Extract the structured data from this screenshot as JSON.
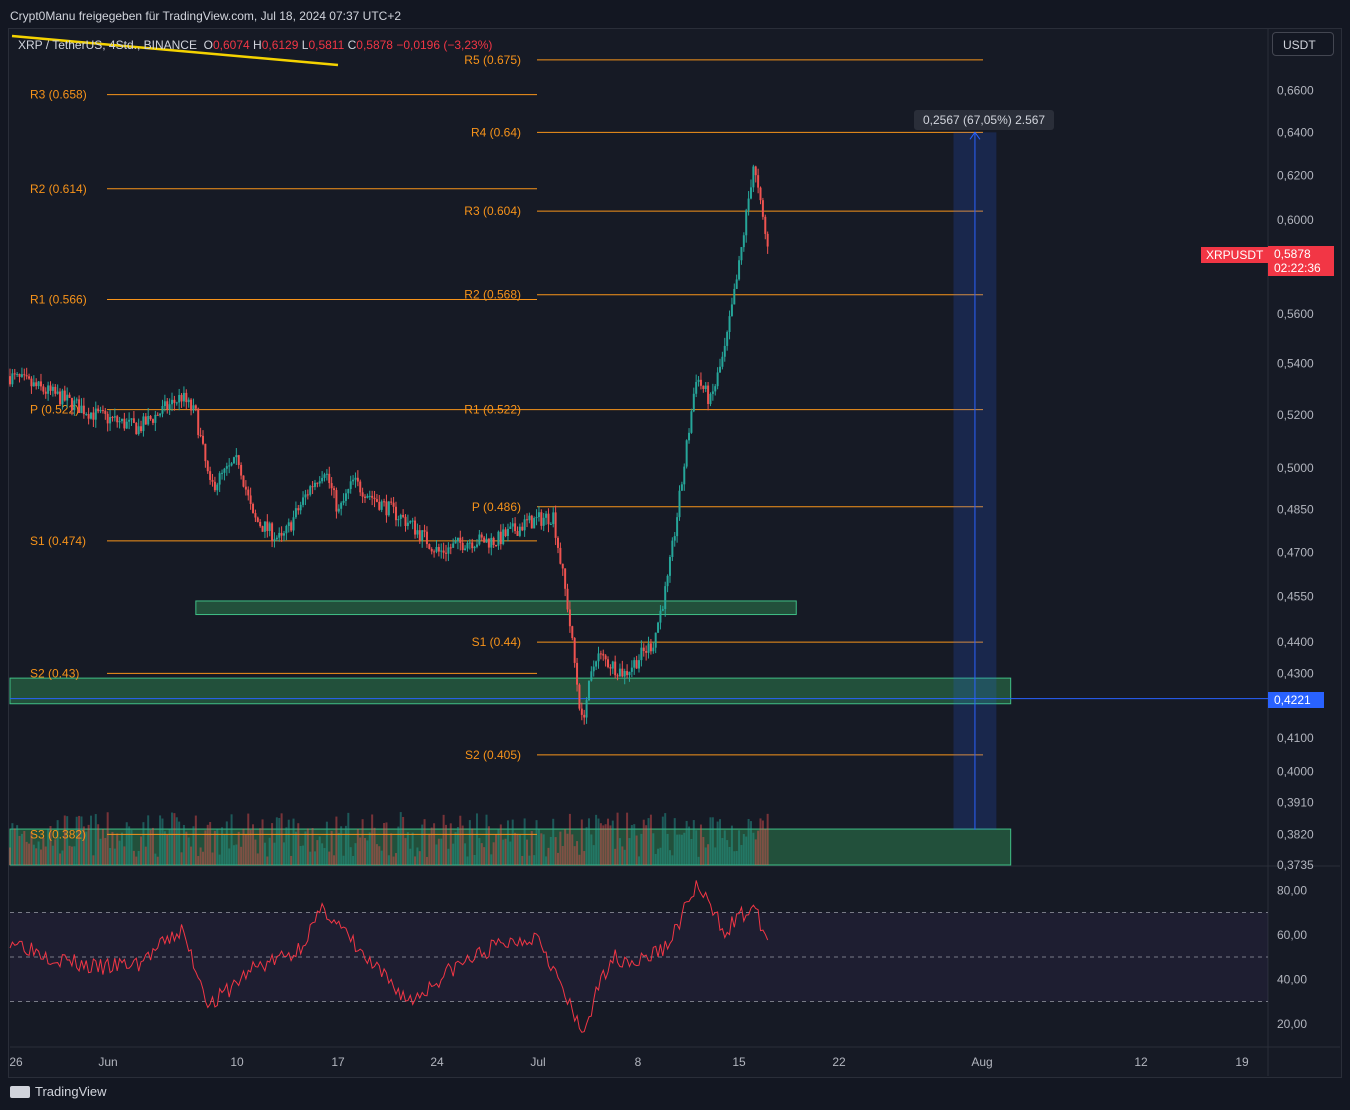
{
  "header": {
    "publisher": "Crypt0Manu freigegeben für TradingView.com, Jul 18, 2024 07:37 UTC+2"
  },
  "legend": {
    "symbol": "XRP / TetherUS, 4Std., BINANCE",
    "o_label": "O",
    "o": "0,6074",
    "h_label": "H",
    "h": "0,6129",
    "l_label": "L",
    "l": "0,5811",
    "c_label": "C",
    "c": "0,5878",
    "change": "−0,0196 (−3,23%)"
  },
  "currency_button": "USDT",
  "measure": {
    "label": "0,2567 (67,05%) 2.567"
  },
  "symbol_tag": "XRPUSDT",
  "last_price": {
    "price": "0,5878",
    "countdown": "02:22:36"
  },
  "hline_price": "0,4221",
  "footer": {
    "brand": "TradingView"
  },
  "colors": {
    "background": "#131722",
    "up": "#26a69a",
    "down": "#ef5350",
    "pivot": "#f7931a",
    "zone": "#2e7d4f",
    "rsi": "#f23645",
    "measure": "#2962ff"
  },
  "chart_data": [
    {
      "type": "candlestick",
      "title": "XRP / TetherUS, 4Std., BINANCE",
      "ylabel": "USDT",
      "scale": "log",
      "ylim": [
        0.3735,
        0.69
      ],
      "y_ticks": [
        "0,6600",
        "0,6400",
        "0,6200",
        "0,6000",
        "0,5600",
        "0,5400",
        "0,5200",
        "0,5000",
        "0,4850",
        "0,4700",
        "0,4550",
        "0,4400",
        "0,4300",
        "0,4100",
        "0,4000",
        "0,3910",
        "0,3820",
        "0,3735"
      ],
      "x_ticks": [
        "26",
        "Jun",
        "10",
        "17",
        "24",
        "Jul",
        "8",
        "15",
        "22",
        "Aug",
        "12",
        "19"
      ],
      "x_start": "2024-05-26",
      "x_end": "2024-08-22",
      "series_points": [
        {
          "date": "2024-05-26",
          "close": 0.535
        },
        {
          "date": "2024-05-29",
          "close": 0.528
        },
        {
          "date": "2024-06-01",
          "close": 0.52
        },
        {
          "date": "2024-06-04",
          "close": 0.515
        },
        {
          "date": "2024-06-07",
          "close": 0.527
        },
        {
          "date": "2024-06-08",
          "close": 0.52
        },
        {
          "date": "2024-06-09",
          "close": 0.493
        },
        {
          "date": "2024-06-11",
          "close": 0.503
        },
        {
          "date": "2024-06-12",
          "close": 0.482
        },
        {
          "date": "2024-06-14",
          "close": 0.474
        },
        {
          "date": "2024-06-16",
          "close": 0.493
        },
        {
          "date": "2024-06-17",
          "close": 0.5
        },
        {
          "date": "2024-06-18",
          "close": 0.484
        },
        {
          "date": "2024-06-19",
          "close": 0.495
        },
        {
          "date": "2024-06-21",
          "close": 0.487
        },
        {
          "date": "2024-06-23",
          "close": 0.48
        },
        {
          "date": "2024-06-25",
          "close": 0.47
        },
        {
          "date": "2024-06-27",
          "close": 0.474
        },
        {
          "date": "2024-06-29",
          "close": 0.474
        },
        {
          "date": "2024-07-01",
          "close": 0.48
        },
        {
          "date": "2024-07-03",
          "close": 0.483
        },
        {
          "date": "2024-07-04",
          "close": 0.452
        },
        {
          "date": "2024-07-05",
          "close": 0.415
        },
        {
          "date": "2024-07-06",
          "close": 0.436
        },
        {
          "date": "2024-07-08",
          "close": 0.43
        },
        {
          "date": "2024-07-10",
          "close": 0.44
        },
        {
          "date": "2024-07-11",
          "close": 0.46
        },
        {
          "date": "2024-07-12",
          "close": 0.495
        },
        {
          "date": "2024-07-13",
          "close": 0.535
        },
        {
          "date": "2024-07-14",
          "close": 0.525
        },
        {
          "date": "2024-07-15",
          "close": 0.545
        },
        {
          "date": "2024-07-16",
          "close": 0.58
        },
        {
          "date": "2024-07-17",
          "close": 0.625
        },
        {
          "date": "2024-07-18",
          "close": 0.5878
        }
      ],
      "pivot_levels_previous": [
        {
          "label": "R3 (0.658)",
          "value": 0.658
        },
        {
          "label": "R2 (0.614)",
          "value": 0.614
        },
        {
          "label": "R1 (0.566)",
          "value": 0.566
        },
        {
          "label": "P (0.522)",
          "value": 0.522
        },
        {
          "label": "S1 (0.474)",
          "value": 0.474
        },
        {
          "label": "S2 (0.43)",
          "value": 0.43
        },
        {
          "label": "S3 (0.382)",
          "value": 0.382
        }
      ],
      "pivot_levels_current": [
        {
          "label": "R5 (0.675)",
          "value": 0.675
        },
        {
          "label": "R4 (0.64)",
          "value": 0.64
        },
        {
          "label": "R3 (0.604)",
          "value": 0.604
        },
        {
          "label": "R2 (0.568)",
          "value": 0.568
        },
        {
          "label": "R1 (0.522)",
          "value": 0.522
        },
        {
          "label": "P (0.486)",
          "value": 0.486
        },
        {
          "label": "S1 (0.44)",
          "value": 0.44
        },
        {
          "label": "S2 (0.405)",
          "value": 0.405
        }
      ],
      "zones": [
        {
          "from": "2024-06-08",
          "to": "2024-07-20",
          "low": 0.449,
          "high": 0.4535
        },
        {
          "from": "2024-05-26",
          "to": "2024-08-04",
          "low": 0.4205,
          "high": 0.4285
        },
        {
          "from": "2024-05-26",
          "to": "2024-08-04",
          "low": 0.3735,
          "high": 0.3835
        }
      ],
      "horizontal_line": 0.4221,
      "measure": {
        "from": "2024-07-31",
        "to": "2024-08-03",
        "low": 0.3833,
        "high": 0.64,
        "change": "0,2567 (67,05%) 2.567"
      }
    },
    {
      "type": "line",
      "title": "RSI",
      "ylim": [
        10,
        90
      ],
      "y_ticks": [
        "80,00",
        "60,00",
        "40,00",
        "20,00"
      ],
      "bands": [
        70,
        50,
        30
      ],
      "x": [
        "2024-05-26",
        "2024-05-29",
        "2024-06-01",
        "2024-06-04",
        "2024-06-07",
        "2024-06-09",
        "2024-06-12",
        "2024-06-15",
        "2024-06-17",
        "2024-06-20",
        "2024-06-23",
        "2024-06-26",
        "2024-06-29",
        "2024-07-02",
        "2024-07-04",
        "2024-07-05",
        "2024-07-07",
        "2024-07-09",
        "2024-07-11",
        "2024-07-13",
        "2024-07-15",
        "2024-07-16",
        "2024-07-17",
        "2024-07-18"
      ],
      "values": [
        58,
        50,
        45,
        47,
        62,
        28,
        45,
        52,
        72,
        48,
        30,
        45,
        55,
        60,
        30,
        15,
        50,
        48,
        55,
        82,
        62,
        68,
        72,
        58
      ]
    }
  ]
}
